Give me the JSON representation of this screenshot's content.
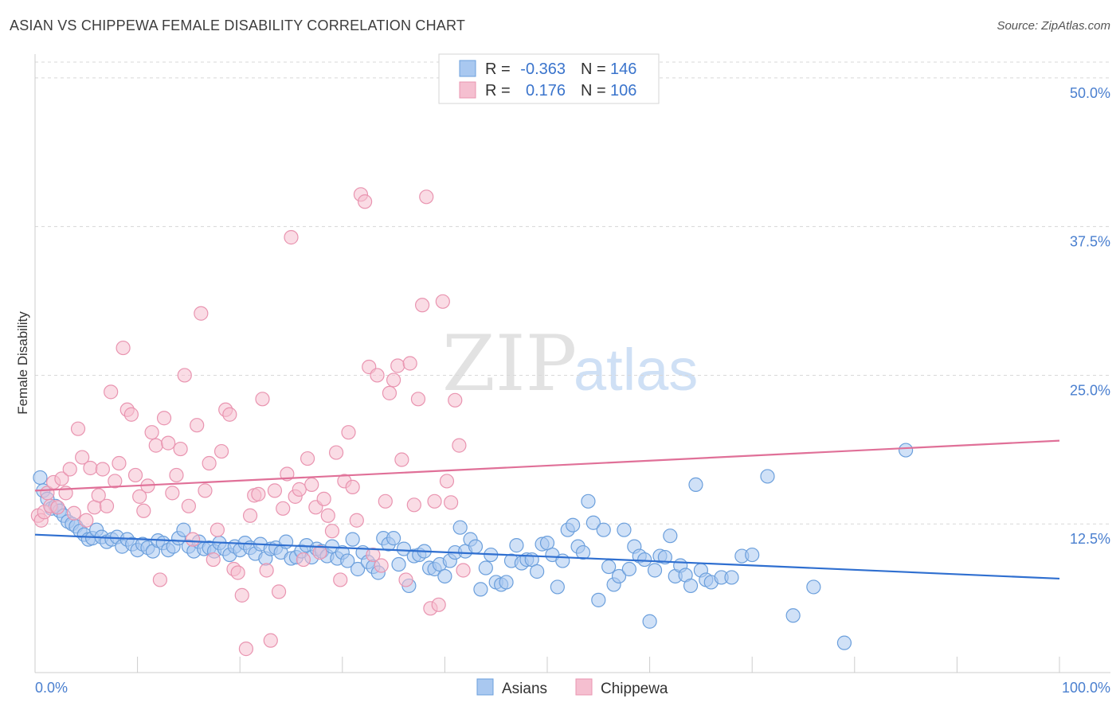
{
  "header": {
    "title": "ASIAN VS CHIPPEWA FEMALE DISABILITY CORRELATION CHART",
    "source": "Source: ZipAtlas.com"
  },
  "watermark": {
    "zip": "ZIP",
    "atlas": "atlas"
  },
  "colors": {
    "asian_fill": "#a9c8f0",
    "asian_stroke": "#6b9fdc",
    "asian_line": "#2f6fd0",
    "chippewa_fill": "#f5bfd0",
    "chippewa_stroke": "#e994b0",
    "chippewa_line": "#e07098",
    "tick_text": "#4a7fcf",
    "grid": "#d8d8d8"
  },
  "legend": {
    "rows": [
      {
        "r_label": "R =",
        "r_value": "-0.363",
        "n_label": "N =",
        "n_value": "146"
      },
      {
        "r_label": "R =",
        "r_value": "0.176",
        "n_label": "N =",
        "n_value": "106"
      }
    ]
  },
  "chart_data": {
    "type": "scatter",
    "title": "ASIAN VS CHIPPEWA FEMALE DISABILITY CORRELATION CHART",
    "xlabel": "",
    "ylabel": "Female Disability",
    "xlim": [
      0,
      100
    ],
    "ylim": [
      0,
      52
    ],
    "x_tick_labels": [
      "0.0%",
      "100.0%"
    ],
    "y_ticks": [
      12.5,
      25.0,
      37.5,
      50.0
    ],
    "y_tick_labels": [
      "12.5%",
      "25.0%",
      "37.5%",
      "50.0%"
    ],
    "legend_labels": [
      "Asians",
      "Chippewa"
    ],
    "series": [
      {
        "name": "Asians",
        "r": -0.363,
        "n": 146,
        "trend": {
          "x": [
            0,
            100
          ],
          "y": [
            11.6,
            7.9
          ]
        },
        "points": [
          [
            0.5,
            16.4
          ],
          [
            0.8,
            15.3
          ],
          [
            1.2,
            14.6
          ],
          [
            1.6,
            13.8
          ],
          [
            2.0,
            14.0
          ],
          [
            2.4,
            13.6
          ],
          [
            2.8,
            13.2
          ],
          [
            3.2,
            12.7
          ],
          [
            3.6,
            12.5
          ],
          [
            4.0,
            12.3
          ],
          [
            4.4,
            11.9
          ],
          [
            4.8,
            11.6
          ],
          [
            5.2,
            11.2
          ],
          [
            5.6,
            11.3
          ],
          [
            6.0,
            12.0
          ],
          [
            6.5,
            11.4
          ],
          [
            7.0,
            11.0
          ],
          [
            7.5,
            11.2
          ],
          [
            8.0,
            11.4
          ],
          [
            8.5,
            10.6
          ],
          [
            9.0,
            11.2
          ],
          [
            9.5,
            10.8
          ],
          [
            10.0,
            10.3
          ],
          [
            10.5,
            10.8
          ],
          [
            11.0,
            10.5
          ],
          [
            11.5,
            10.2
          ],
          [
            12.0,
            11.1
          ],
          [
            12.5,
            10.9
          ],
          [
            13.0,
            10.3
          ],
          [
            13.5,
            10.6
          ],
          [
            14.0,
            11.3
          ],
          [
            14.5,
            12.0
          ],
          [
            15.0,
            10.6
          ],
          [
            15.5,
            10.2
          ],
          [
            16.0,
            11.0
          ],
          [
            16.5,
            10.4
          ],
          [
            17.0,
            10.5
          ],
          [
            17.5,
            10.2
          ],
          [
            18.0,
            10.9
          ],
          [
            18.5,
            10.4
          ],
          [
            19.0,
            9.9
          ],
          [
            19.5,
            10.6
          ],
          [
            20.0,
            10.3
          ],
          [
            20.5,
            10.9
          ],
          [
            21.0,
            10.5
          ],
          [
            21.5,
            10.0
          ],
          [
            22.0,
            10.8
          ],
          [
            22.5,
            9.6
          ],
          [
            23.0,
            10.4
          ],
          [
            23.5,
            10.5
          ],
          [
            24.0,
            10.1
          ],
          [
            24.5,
            11.0
          ],
          [
            25.0,
            9.6
          ],
          [
            25.5,
            9.7
          ],
          [
            26.0,
            10.2
          ],
          [
            26.5,
            10.7
          ],
          [
            27.0,
            9.7
          ],
          [
            27.5,
            10.4
          ],
          [
            28.0,
            10.2
          ],
          [
            28.5,
            9.8
          ],
          [
            29.0,
            10.6
          ],
          [
            29.5,
            9.6
          ],
          [
            30.0,
            10.1
          ],
          [
            30.5,
            9.4
          ],
          [
            31.0,
            11.2
          ],
          [
            31.5,
            8.7
          ],
          [
            32.0,
            10.1
          ],
          [
            32.5,
            9.3
          ],
          [
            33.0,
            8.9
          ],
          [
            33.5,
            8.4
          ],
          [
            34.0,
            11.3
          ],
          [
            34.5,
            10.8
          ],
          [
            35.0,
            11.3
          ],
          [
            35.5,
            9.1
          ],
          [
            36.0,
            10.4
          ],
          [
            36.5,
            7.3
          ],
          [
            37.0,
            9.8
          ],
          [
            37.5,
            9.9
          ],
          [
            38.0,
            10.2
          ],
          [
            38.5,
            8.8
          ],
          [
            39.0,
            8.7
          ],
          [
            39.5,
            9.1
          ],
          [
            40.0,
            8.1
          ],
          [
            40.5,
            9.4
          ],
          [
            41.0,
            10.1
          ],
          [
            41.5,
            12.2
          ],
          [
            42.0,
            10.2
          ],
          [
            42.5,
            11.2
          ],
          [
            43.0,
            10.6
          ],
          [
            43.5,
            7.0
          ],
          [
            44.0,
            8.8
          ],
          [
            44.5,
            9.9
          ],
          [
            45.0,
            7.6
          ],
          [
            45.5,
            7.4
          ],
          [
            46.0,
            7.6
          ],
          [
            46.5,
            9.4
          ],
          [
            47.0,
            10.7
          ],
          [
            47.5,
            9.2
          ],
          [
            48.0,
            9.5
          ],
          [
            48.5,
            9.5
          ],
          [
            49.0,
            8.5
          ],
          [
            49.5,
            10.8
          ],
          [
            50.0,
            10.9
          ],
          [
            50.5,
            9.9
          ],
          [
            51.0,
            7.2
          ],
          [
            51.5,
            9.4
          ],
          [
            52.0,
            12.0
          ],
          [
            52.5,
            12.4
          ],
          [
            53.0,
            10.6
          ],
          [
            53.5,
            10.1
          ],
          [
            54.0,
            14.4
          ],
          [
            54.5,
            12.6
          ],
          [
            55.0,
            6.1
          ],
          [
            55.5,
            12.0
          ],
          [
            56.0,
            8.9
          ],
          [
            56.5,
            7.4
          ],
          [
            57.0,
            8.1
          ],
          [
            57.5,
            12.0
          ],
          [
            58.0,
            8.7
          ],
          [
            58.5,
            10.6
          ],
          [
            59.0,
            9.8
          ],
          [
            59.5,
            9.5
          ],
          [
            60.0,
            4.3
          ],
          [
            60.5,
            8.6
          ],
          [
            61.0,
            9.8
          ],
          [
            61.5,
            9.7
          ],
          [
            62.0,
            11.5
          ],
          [
            62.5,
            8.1
          ],
          [
            63.0,
            9.0
          ],
          [
            63.5,
            8.2
          ],
          [
            64.0,
            7.3
          ],
          [
            64.5,
            15.8
          ],
          [
            65.0,
            8.6
          ],
          [
            65.5,
            7.8
          ],
          [
            66.0,
            7.6
          ],
          [
            67.0,
            8.0
          ],
          [
            68.0,
            8.0
          ],
          [
            69.0,
            9.8
          ],
          [
            70.0,
            9.9
          ],
          [
            71.5,
            16.5
          ],
          [
            74.0,
            4.8
          ],
          [
            76.0,
            7.2
          ],
          [
            79.0,
            2.5
          ],
          [
            85.0,
            18.7
          ]
        ]
      },
      {
        "name": "Chippewa",
        "r": 0.176,
        "n": 106,
        "trend": {
          "x": [
            0,
            100
          ],
          "y": [
            15.3,
            19.5
          ]
        },
        "points": [
          [
            0.3,
            13.2
          ],
          [
            0.6,
            12.8
          ],
          [
            0.9,
            13.5
          ],
          [
            1.2,
            15.1
          ],
          [
            1.5,
            14.0
          ],
          [
            1.8,
            16.0
          ],
          [
            2.2,
            13.9
          ],
          [
            2.6,
            16.3
          ],
          [
            3.0,
            15.1
          ],
          [
            3.4,
            17.1
          ],
          [
            3.8,
            13.4
          ],
          [
            4.2,
            20.5
          ],
          [
            4.6,
            18.1
          ],
          [
            5.0,
            12.8
          ],
          [
            5.4,
            17.2
          ],
          [
            5.8,
            13.9
          ],
          [
            6.2,
            14.9
          ],
          [
            6.6,
            17.1
          ],
          [
            7.0,
            14.0
          ],
          [
            7.4,
            23.6
          ],
          [
            7.8,
            16.1
          ],
          [
            8.2,
            17.6
          ],
          [
            8.6,
            27.3
          ],
          [
            9.0,
            22.1
          ],
          [
            9.4,
            21.7
          ],
          [
            9.8,
            16.6
          ],
          [
            10.2,
            14.8
          ],
          [
            10.6,
            13.6
          ],
          [
            11.0,
            15.7
          ],
          [
            11.4,
            20.2
          ],
          [
            11.8,
            19.1
          ],
          [
            12.2,
            7.8
          ],
          [
            12.6,
            21.4
          ],
          [
            13.0,
            19.3
          ],
          [
            13.4,
            15.1
          ],
          [
            13.8,
            16.6
          ],
          [
            14.2,
            18.8
          ],
          [
            14.6,
            25.0
          ],
          [
            15.0,
            14.0
          ],
          [
            15.4,
            11.2
          ],
          [
            15.8,
            20.8
          ],
          [
            16.2,
            30.2
          ],
          [
            16.6,
            15.3
          ],
          [
            17.0,
            17.6
          ],
          [
            17.4,
            9.5
          ],
          [
            17.8,
            12.0
          ],
          [
            18.2,
            18.6
          ],
          [
            18.6,
            22.1
          ],
          [
            19.0,
            21.7
          ],
          [
            19.4,
            8.7
          ],
          [
            19.8,
            8.4
          ],
          [
            20.2,
            6.5
          ],
          [
            20.6,
            2.0
          ],
          [
            21.0,
            13.2
          ],
          [
            21.4,
            14.9
          ],
          [
            21.8,
            15.0
          ],
          [
            22.2,
            23.0
          ],
          [
            22.6,
            8.6
          ],
          [
            23.0,
            2.7
          ],
          [
            23.4,
            15.3
          ],
          [
            23.8,
            6.8
          ],
          [
            24.2,
            13.8
          ],
          [
            24.6,
            16.7
          ],
          [
            25.0,
            36.6
          ],
          [
            25.4,
            14.8
          ],
          [
            25.8,
            15.4
          ],
          [
            26.2,
            9.5
          ],
          [
            26.6,
            18.0
          ],
          [
            27.0,
            15.8
          ],
          [
            27.4,
            13.9
          ],
          [
            27.8,
            10.1
          ],
          [
            28.2,
            14.6
          ],
          [
            28.6,
            13.2
          ],
          [
            29.0,
            11.9
          ],
          [
            29.4,
            18.5
          ],
          [
            29.8,
            7.8
          ],
          [
            30.2,
            16.1
          ],
          [
            30.6,
            20.2
          ],
          [
            31.0,
            15.6
          ],
          [
            31.4,
            12.8
          ],
          [
            31.8,
            40.2
          ],
          [
            32.2,
            39.6
          ],
          [
            32.6,
            25.7
          ],
          [
            33.0,
            9.9
          ],
          [
            33.4,
            25.0
          ],
          [
            33.8,
            9.0
          ],
          [
            34.2,
            14.4
          ],
          [
            34.6,
            23.5
          ],
          [
            35.0,
            24.6
          ],
          [
            35.4,
            25.8
          ],
          [
            35.8,
            17.9
          ],
          [
            36.2,
            7.8
          ],
          [
            36.6,
            26.0
          ],
          [
            37.0,
            14.1
          ],
          [
            37.4,
            23.0
          ],
          [
            37.8,
            30.9
          ],
          [
            38.2,
            40.0
          ],
          [
            38.6,
            5.4
          ],
          [
            39.0,
            14.4
          ],
          [
            39.4,
            5.7
          ],
          [
            39.8,
            31.2
          ],
          [
            40.2,
            16.1
          ],
          [
            40.6,
            14.3
          ],
          [
            41.0,
            22.9
          ],
          [
            41.4,
            19.1
          ],
          [
            41.8,
            8.6
          ]
        ]
      }
    ]
  }
}
